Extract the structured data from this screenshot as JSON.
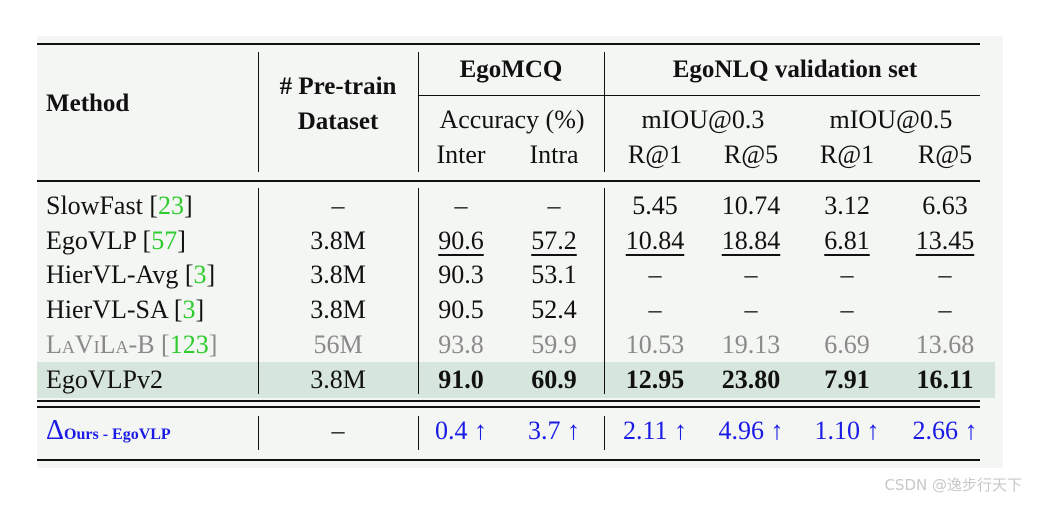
{
  "header": {
    "method": "Method",
    "pretrain_line1": "# Pre-train",
    "pretrain_line2": "Dataset",
    "egomcq": "EgoMCQ",
    "egonlq": "EgoNLQ validation set",
    "accuracy": "Accuracy (%)",
    "miou03": "mIOU@0.3",
    "miou05": "mIOU@0.5",
    "inter": "Inter",
    "intra": "Intra",
    "r1a": "R@1",
    "r5a": "R@5",
    "r1b": "R@1",
    "r5b": "R@5"
  },
  "rows": [
    {
      "name": "SlowFast ",
      "ref": "23",
      "dataset": "–",
      "inter": "–",
      "intra": "–",
      "r1a": "5.45",
      "r5a": "10.74",
      "r1b": "3.12",
      "r5b": "6.63"
    },
    {
      "name": "EgoVLP ",
      "ref": "57",
      "dataset": "3.8M",
      "inter": "90.6",
      "intra": "57.2",
      "r1a": "10.84",
      "r5a": "18.84",
      "r1b": "6.81",
      "r5b": "13.45"
    },
    {
      "name": "HierVL-Avg ",
      "ref": "3",
      "dataset": "3.8M",
      "inter": "90.3",
      "intra": "53.1",
      "r1a": "–",
      "r5a": "–",
      "r1b": "–",
      "r5b": "–"
    },
    {
      "name": "HierVL-SA ",
      "ref": "3",
      "dataset": "3.8M",
      "inter": "90.5",
      "intra": "52.4",
      "r1a": "–",
      "r5a": "–",
      "r1b": "–",
      "r5b": "–"
    },
    {
      "name": "LaViLa-B ",
      "ref": "123",
      "dataset": "56M",
      "inter": "93.8",
      "intra": "59.9",
      "r1a": "10.53",
      "r5a": "19.13",
      "r1b": "6.69",
      "r5b": "13.68"
    },
    {
      "name": "EgoVLPv2",
      "ref": "",
      "dataset": "3.8M",
      "inter": "91.0",
      "intra": "60.9",
      "r1a": "12.95",
      "r5a": "23.80",
      "r1b": "7.91",
      "r5b": "16.11"
    }
  ],
  "delta": {
    "symbol": "Δ",
    "subscript": "Ours - EgoVLP",
    "dataset": "–",
    "inter": "0.4 ↑",
    "intra": "3.7 ↑",
    "r1a": "2.11 ↑",
    "r5a": "4.96 ↑",
    "r1b": "1.10 ↑",
    "r5b": "2.66 ↑"
  },
  "watermark": "CSDN @逸步行天下",
  "colors": {
    "panel": "#f3f6f2",
    "highlight": "#d7e6dc",
    "ref": "#2ecc2e",
    "delta": "#1a1ae6",
    "gray": "#8a8a8a"
  }
}
